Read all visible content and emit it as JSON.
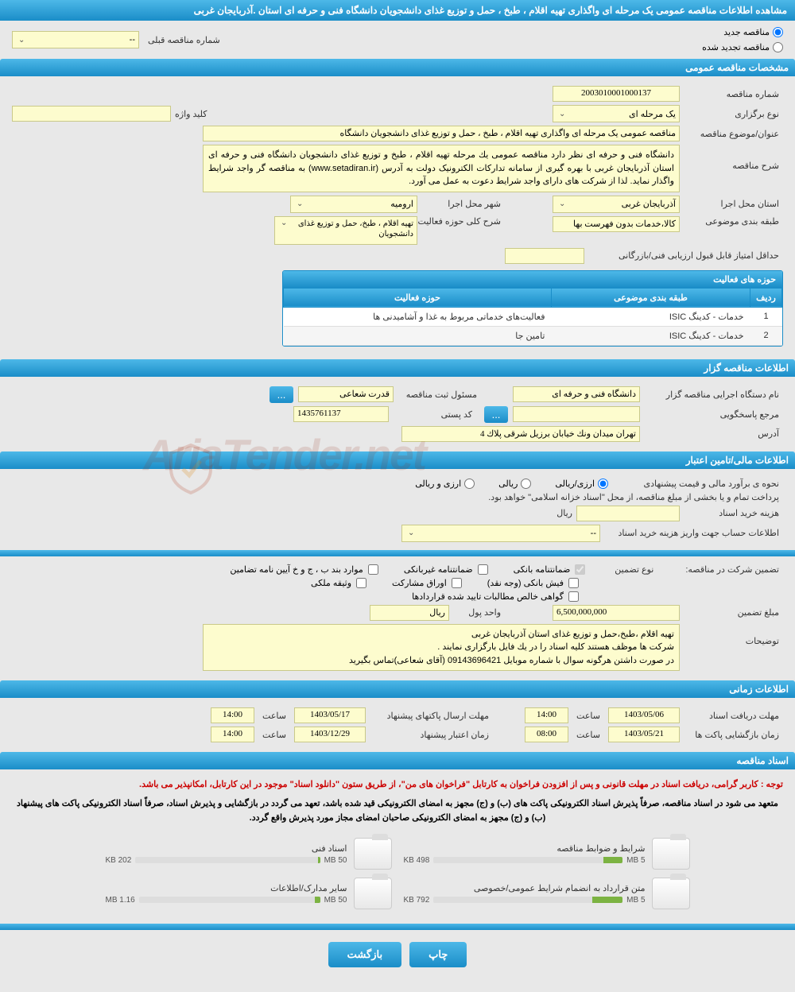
{
  "title": "مشاهده اطلاعات مناقصه عمومی یک مرحله ای واگذاری تهیه اقلام ، طبخ ، حمل و توزیع غذای دانشجویان دانشگاه فنی و حرفه ای استان .آذربایجان غربی",
  "radio": {
    "new": "مناقصه جدید",
    "renew": "مناقصه تجدید شده",
    "prev_label": "شماره مناقصه قبلی",
    "prev_value": "--"
  },
  "sections": {
    "general": "مشخصات مناقصه عمومی",
    "org": "اطلاعات مناقصه گزار",
    "financial": "اطلاعات مالی/تامین اعتبار",
    "timing": "اطلاعات زمانی",
    "docs": "اسناد مناقصه"
  },
  "general": {
    "tender_no_label": "شماره مناقصه",
    "tender_no": "2003010001000137",
    "type_label": "نوع برگزاری",
    "type_value": "یک مرحله ای",
    "keyword_label": "کلید واژه",
    "keyword_value": "",
    "subject_label": "عنوان/موضوع مناقصه",
    "subject_value": "مناقصه عمومی یک مرحله ای واگذاری  تهیه اقلام ،   طبخ ، حمل و  توزیع   غذای دانشجویان دانشگاه",
    "desc_label": "شرح مناقصه",
    "desc_value": "دانشگاه فنی و حرفه ای  نظر دارد مناقصه عمومی  یك مرحله  تهیه اقلام ،  طبخ و توزیع غذای دانشجویان دانشگاه فنی و حرفه ای استان آذربایجان غربی  با بهره گیری از سامانه تدارکات الکترونیک دولت به آدرس (www.setadiran.ir) به مناقصه گر واجد شرایط واگذار نماید. لذا از  شرکت  های  دارای واجد شرایط دعوت به عمل می آورد.",
    "province_label": "استان محل اجرا",
    "province_value": "آذربایجان غربی",
    "city_label": "شهر محل اجرا",
    "city_value": "ارومیه",
    "category_label": "طبقه بندی موضوعی",
    "category_value": "کالا،خدمات بدون فهرست بها",
    "scope_label": "شرح کلی حوزه فعالیت",
    "scope_value": "تهیه اقلام ،  طبخ، حمل و توزیع غذای دانشجویان",
    "min_score_label": "حداقل امتیاز قابل قبول ارزیابی فنی/بازرگانی",
    "min_score_value": ""
  },
  "activity_table": {
    "title": "حوزه های فعالیت",
    "cols": [
      "ردیف",
      "طبقه بندی موضوعی",
      "حوزه فعالیت"
    ],
    "rows": [
      [
        "1",
        "خدمات - کدینگ ISIC",
        "فعالیت‌های خدماتی مربوط به غذا و آشامیدنی ها"
      ],
      [
        "2",
        "خدمات - کدینگ ISIC",
        "تامین جا"
      ]
    ]
  },
  "org": {
    "agency_label": "نام دستگاه اجرایی مناقصه گزار",
    "agency_value": "دانشگاه فنی و حرفه ای",
    "manager_label": "مسئول ثبت مناقصه",
    "manager_value": "قدرت شعاعی",
    "referral_label": "مرجع پاسخگویی",
    "referral_value": "",
    "postal_label": "کد پستی",
    "postal_value": "1435761137",
    "address_label": "آدرس",
    "address_value": "تهران میدان ونك خیابان برزیل شرقی پلاك 4"
  },
  "financial": {
    "estimate_label": "نحوه ی برآورد مالی و قیمت پیشنهادی",
    "opt_currency": "ارزی/ریالی",
    "opt_rial": "ریالی",
    "opt_foreign": "ارزی و ریالی",
    "note": "پرداخت تمام و یا بخشی از مبلغ مناقصه، از محل \"اسناد خزانه اسلامی\" خواهد بود.",
    "doc_cost_label": "هزینه خرید اسناد",
    "doc_cost_value": "",
    "currency": "ریال",
    "account_label": "اطلاعات حساب جهت واریز هزینه خرید اسناد",
    "account_value": "--",
    "guarantee_label": "تضمین شرکت در مناقصه:",
    "guarantee_type_label": "نوع تضمین",
    "guarantee_opts": {
      "bank": "ضمانتنامه بانکی",
      "nonbank": "ضمانتنامه غیربانکی",
      "bylaw": "موارد بند ب ، ج و خ آیین نامه تضامین",
      "cash": "فیش بانکی (وجه نقد)",
      "bonds": "اوراق مشارکت",
      "property": "وثیقه ملکی",
      "receivables": "گواهی خالص مطالبات تایید شده قراردادها"
    },
    "amount_label": "مبلغ تضمین",
    "amount_value": "6,500,000,000",
    "unit_label": "واحد پول",
    "unit_value": "ریال",
    "notes_label": "توضیحات",
    "notes_value": "تهیه اقلام ،طبخ،حمل و توزیع غذای استان آذربایجان غربی\nشرکت ها موظف هستند کلیه اسناد را در یك فایل بارگزاری نمایند .\nدر صورت داشتن هرگونه سوال با شماره موبایل 09143696421 (آقای شعاعی)تماس بگیرید"
  },
  "timing": {
    "receive_label": "مهلت دریافت اسناد",
    "receive_date": "1403/05/06",
    "receive_time": "14:00",
    "submit_label": "مهلت ارسال پاکتهای پیشنهاد",
    "submit_date": "1403/05/17",
    "submit_time": "14:00",
    "open_label": "زمان بازگشایی پاکت ها",
    "open_date": "1403/05/21",
    "open_time": "08:00",
    "validity_label": "زمان اعتبار پیشنهاد",
    "validity_date": "1403/12/29",
    "validity_time": "14:00",
    "time_label": "ساعت"
  },
  "docs": {
    "warning": "توجه : کاربر گرامی، دریافت اسناد در مهلت قانونی و پس از افزودن فراخوان به کارتابل \"فراخوان های من\"، از طریق ستون \"دانلود اسناد\" موجود در این کارتابل، امکانپذیر می باشد.",
    "notice": "متعهد می شود در اسناد مناقصه، صرفاً پذیرش اسناد الکترونیکی پاکت های (ب) و (ج) مجهز به امضای الکترونیکی قید شده باشد، تعهد می گردد در بازگشایی و پذیرش اسناد، صرفاً اسناد الکترونیکی پاکت های پیشنهاد (ب) و (ج) مجهز به امضای الکترونیکی صاحبان امضای مجاز مورد پذیرش واقع گردد.",
    "files": [
      {
        "name": "شرایط و ضوابط مناقصه",
        "size": "498 KB",
        "max": "5 MB",
        "pct": 10
      },
      {
        "name": "اسناد فنی",
        "size": "202 KB",
        "max": "50 MB",
        "pct": 1
      },
      {
        "name": "متن قرارداد به انضمام شرایط عمومی/خصوصی",
        "size": "792 KB",
        "max": "5 MB",
        "pct": 16
      },
      {
        "name": "سایر مدارک/اطلاعات",
        "size": "1.16 MB",
        "max": "50 MB",
        "pct": 3
      }
    ]
  },
  "buttons": {
    "print": "چاپ",
    "back": "بازگشت",
    "more": "..."
  },
  "colors": {
    "header_bg": "#2a9fd6",
    "header_grad_top": "#4db8e8",
    "header_grad_bot": "#1a8dc8",
    "yellow_bg": "#fdfcce",
    "yellow_border": "#c9c989",
    "page_bg": "#e8e8e8",
    "red_text": "#cc0000",
    "bar_fill": "#7cb342"
  }
}
